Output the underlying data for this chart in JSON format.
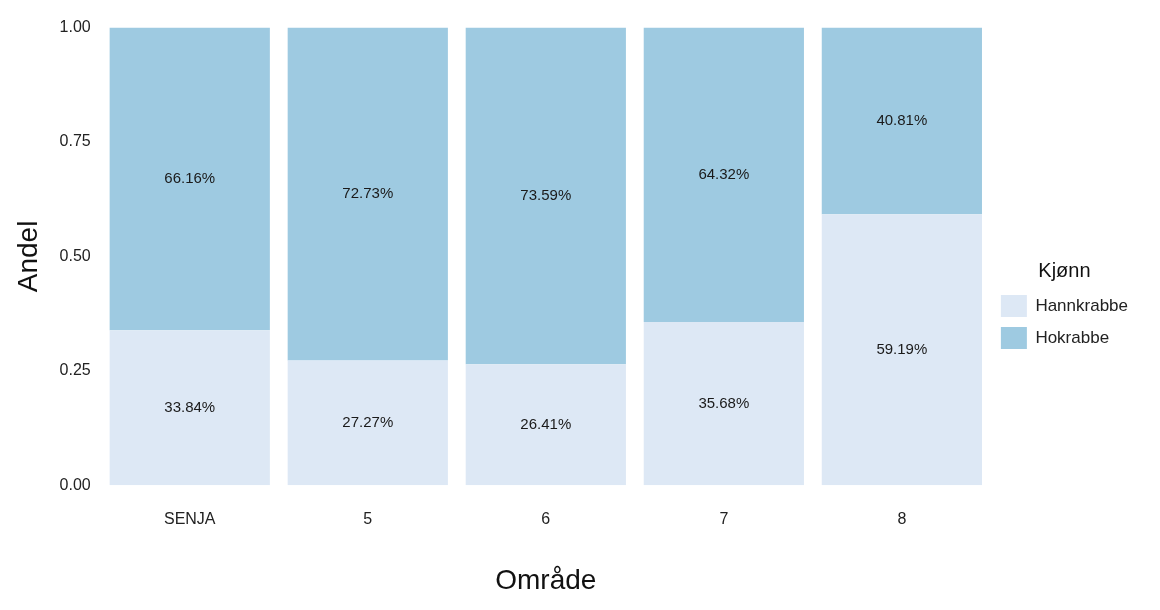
{
  "chart_data": {
    "type": "bar",
    "stacked": true,
    "xlabel": "Område",
    "ylabel": "Andel",
    "legend_title": "Kjønn",
    "legend": "right",
    "grid": false,
    "categories": [
      "SENJA",
      "5",
      "6",
      "7",
      "8"
    ],
    "ylim": [
      0,
      1
    ],
    "yticks": [
      {
        "value": 0,
        "label": "0.00"
      },
      {
        "value": 0.25,
        "label": "0.25"
      },
      {
        "value": 0.5,
        "label": "0.50"
      },
      {
        "value": 0.75,
        "label": "0.75"
      },
      {
        "value": 1,
        "label": "1.00"
      }
    ],
    "series": [
      {
        "name": "Hannkrabbe",
        "color": "#dde8f5",
        "values": [
          0.3384,
          0.2727,
          0.2641,
          0.3568,
          0.5919
        ],
        "value_labels": [
          "33.84%",
          "27.27%",
          "26.41%",
          "35.68%",
          "59.19%"
        ]
      },
      {
        "name": "Hokrabbe",
        "color": "#9ecae1",
        "values": [
          0.6616,
          0.7273,
          0.7359,
          0.6432,
          0.4081
        ],
        "value_labels": [
          "66.16%",
          "72.73%",
          "73.59%",
          "64.32%",
          "40.81%"
        ]
      }
    ]
  }
}
